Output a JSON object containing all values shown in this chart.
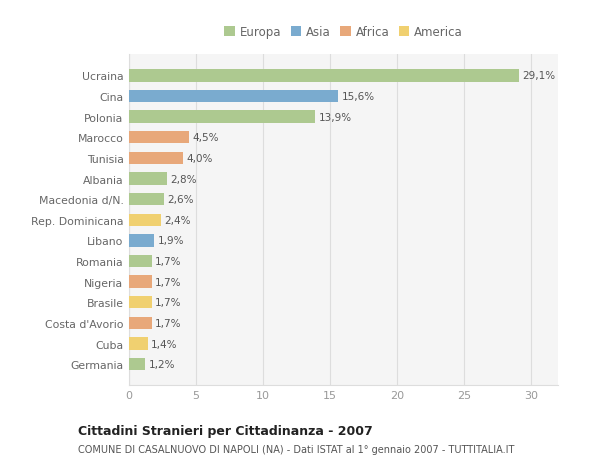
{
  "countries": [
    "Germania",
    "Cuba",
    "Costa d'Avorio",
    "Brasile",
    "Nigeria",
    "Romania",
    "Libano",
    "Rep. Dominicana",
    "Macedonia d/N.",
    "Albania",
    "Tunisia",
    "Marocco",
    "Polonia",
    "Cina",
    "Ucraina"
  ],
  "values": [
    1.2,
    1.4,
    1.7,
    1.7,
    1.7,
    1.7,
    1.9,
    2.4,
    2.6,
    2.8,
    4.0,
    4.5,
    13.9,
    15.6,
    29.1
  ],
  "labels": [
    "1,2%",
    "1,4%",
    "1,7%",
    "1,7%",
    "1,7%",
    "1,7%",
    "1,9%",
    "2,4%",
    "2,6%",
    "2,8%",
    "4,0%",
    "4,5%",
    "13,9%",
    "15,6%",
    "29,1%"
  ],
  "continents": [
    "Europa",
    "America",
    "Africa",
    "America",
    "Africa",
    "Europa",
    "Asia",
    "America",
    "Europa",
    "Europa",
    "Africa",
    "Africa",
    "Europa",
    "Asia",
    "Europa"
  ],
  "continent_colors": {
    "Europa": "#adc990",
    "Asia": "#7aabcf",
    "Africa": "#e8a87a",
    "America": "#f0d070"
  },
  "legend_order": [
    "Europa",
    "Asia",
    "Africa",
    "America"
  ],
  "title": "Cittadini Stranieri per Cittadinanza - 2007",
  "subtitle": "COMUNE DI CASALNUOVO DI NAPOLI (NA) - Dati ISTAT al 1° gennaio 2007 - TUTTITALIA.IT",
  "xlim": [
    0,
    32
  ],
  "xticks": [
    0,
    5,
    10,
    15,
    20,
    25,
    30
  ],
  "background_color": "#ffffff",
  "plot_bg_color": "#f5f5f5",
  "grid_color": "#dddddd",
  "bar_height": 0.6
}
